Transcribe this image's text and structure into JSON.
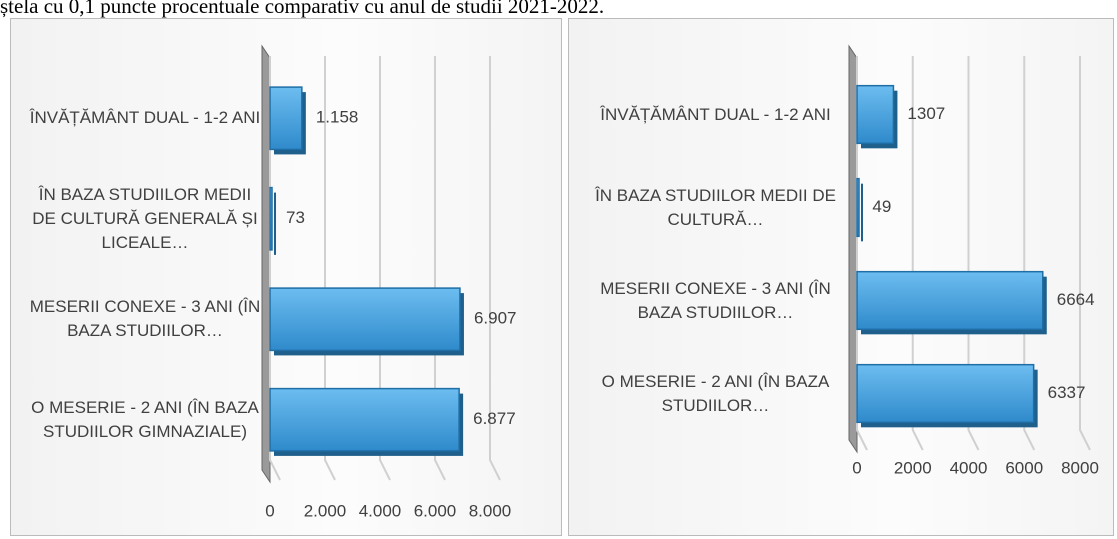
{
  "header_text": "ștela cu 0,1 puncte procentuale comparativ cu anul de studii 2021-2022.",
  "chart_data": [
    {
      "type": "bar",
      "orientation": "horizontal",
      "color": "#3a9ad8",
      "categories": [
        "ÎNVĂȚĂMÂNT DUAL - 1-2 ANI",
        "ÎN BAZA STUDIILOR MEDII DE CULTURĂ GENERALĂ ȘI LICEALE…",
        "MESERII CONEXE - 3 ANI (ÎN BAZA STUDIILOR…",
        "O MESERIE - 2 ANI (ÎN BAZA STUDIILOR GIMNAZIALE)"
      ],
      "values": [
        1158,
        73,
        6907,
        6877
      ],
      "value_labels": [
        "1.158",
        "73",
        "6.907",
        "6.877"
      ],
      "xlim": [
        0,
        8000
      ],
      "xticks": [
        0,
        {
          "value": 2000,
          "label": "2.000"
        },
        {
          "value": 4000,
          "label": "4.000"
        },
        {
          "value": 6000,
          "label": "6.000"
        },
        {
          "value": 8000,
          "label": "8.000"
        }
      ],
      "grid": true
    },
    {
      "type": "bar",
      "orientation": "horizontal",
      "color": "#3a9ad8",
      "categories": [
        "ÎNVĂȚĂMÂNT DUAL - 1-2 ANI",
        "ÎN BAZA STUDIILOR MEDII DE CULTURĂ…",
        "MESERII CONEXE - 3 ANI (ÎN BAZA STUDIILOR…",
        "O MESERIE - 2 ANI (ÎN BAZA STUDIILOR…"
      ],
      "values": [
        1307,
        49,
        6664,
        6337
      ],
      "xlim": [
        0,
        8000
      ],
      "xticks": [
        0,
        2000,
        4000,
        6000,
        8000
      ],
      "grid": true
    }
  ]
}
